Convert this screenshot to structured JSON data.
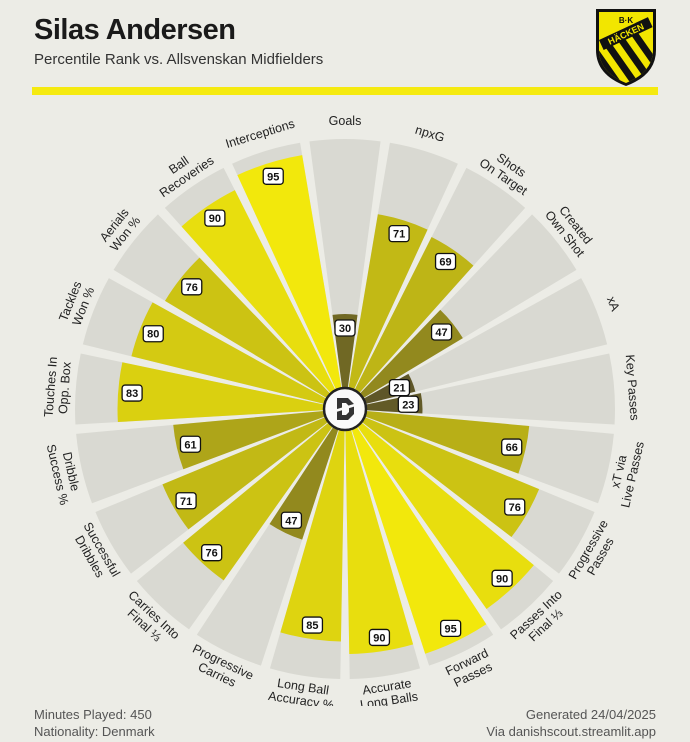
{
  "header": {
    "player_name": "Silas Andersen",
    "subtitle": "Percentile Rank vs. Allsvenskan Midfielders"
  },
  "logo": {
    "text_top": "B·K",
    "text_main": "HÄCKEN",
    "colors": {
      "yellow": "#f2e600",
      "black": "#111111"
    }
  },
  "footer": {
    "minutes": "Minutes Played: 450",
    "nationality": "Nationality: Denmark",
    "generated": "Generated 24/04/2025",
    "source": "Via danishscout.streamlit.app"
  },
  "center_icon": "ds-monogram-icon",
  "colors": {
    "background": "#ecece6",
    "slice_bg": "#d9d9d2",
    "accent": "#f5ea10",
    "low": "#5c5428",
    "high": "#f2e80c"
  },
  "chart_data": {
    "type": "polar-bar",
    "scale": [
      0,
      100
    ],
    "categories": [
      "Goals",
      "npxG",
      "Shots On Target",
      "Created Own Shot",
      "xA",
      "Key Passes",
      "xT via Live Passes",
      "Progressive Passes",
      "Passes Into Final ⅓",
      "Forward Passes",
      "Accurate Long Balls",
      "Long Ball Accuracy %",
      "Progressive Carries",
      "Carries Into Final ⅓",
      "Successful Dribbles",
      "Dribble Success %",
      "Touches In Opp. Box",
      "Tackles Won %",
      "Aerials Won %",
      "Ball Recoveries",
      "Interceptions"
    ],
    "label_lines": [
      [
        "Goals"
      ],
      [
        "npxG"
      ],
      [
        "Shots",
        "On Target"
      ],
      [
        "Created",
        "Own Shot"
      ],
      [
        "xA"
      ],
      [
        "Key Passes"
      ],
      [
        "xT via",
        "Live Passes"
      ],
      [
        "Progressive",
        "Passes"
      ],
      [
        "Passes Into",
        "Final ⅓"
      ],
      [
        "Forward",
        "Passes"
      ],
      [
        "Accurate",
        "Long Balls"
      ],
      [
        "Long Ball",
        "Accuracy %"
      ],
      [
        "Progressive",
        "Carries"
      ],
      [
        "Carries Into",
        "Final ⅓"
      ],
      [
        "Successful",
        "Dribbles"
      ],
      [
        "Dribble",
        "Success %"
      ],
      [
        "Touches In",
        "Opp. Box"
      ],
      [
        "Tackles",
        "Won %"
      ],
      [
        "Aerials",
        "Won %"
      ],
      [
        "Ball",
        "Recoveries"
      ],
      [
        "Interceptions"
      ]
    ],
    "values": [
      30,
      71,
      69,
      47,
      21,
      23,
      66,
      76,
      90,
      95,
      90,
      85,
      47,
      76,
      71,
      61,
      83,
      80,
      76,
      90,
      95
    ]
  }
}
